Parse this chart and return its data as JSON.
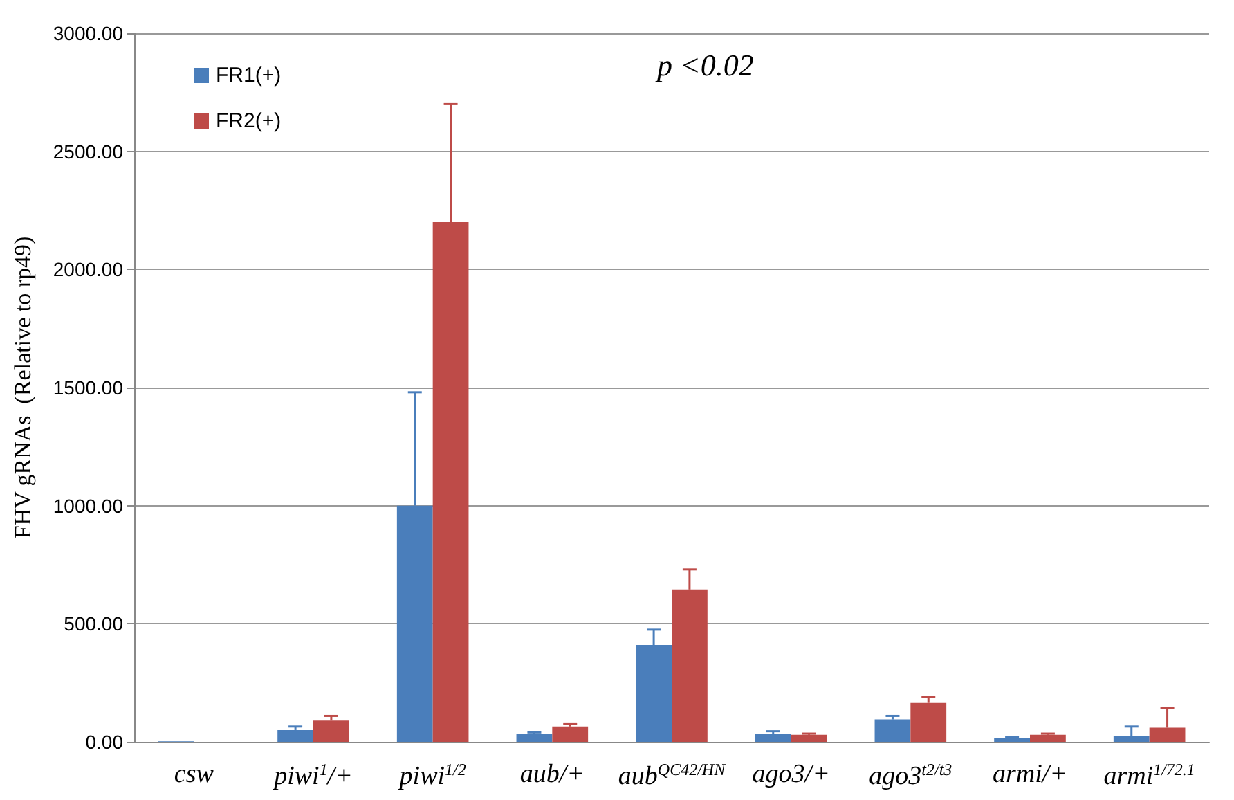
{
  "chart_data": {
    "type": "bar",
    "ylabel": "FHV gRNAs  (Relative to rp49)",
    "categories": [
      "csw",
      "piwi$^{1}$/+",
      "piwi$^{1/2}$",
      "aub/+",
      "aub$^{QC42/HN}$",
      "ago3/+",
      "ago3$^{t2/t3}$",
      "armi/+",
      "armi$^{1/72.1}$"
    ],
    "series": [
      {
        "name": "FR1(+)",
        "color": "#4a7ebb",
        "values": [
          2,
          50,
          1000,
          35,
          410,
          35,
          95,
          15,
          25
        ],
        "errors": [
          null,
          [
            50,
            65
          ],
          [
            1000,
            1480
          ],
          [
            35,
            40
          ],
          [
            410,
            475
          ],
          [
            35,
            45
          ],
          [
            95,
            110
          ],
          [
            15,
            20
          ],
          [
            25,
            65
          ]
        ]
      },
      {
        "name": "FR2(+)",
        "color": "#be4b48",
        "values": [
          null,
          90,
          2200,
          65,
          645,
          30,
          165,
          30,
          60
        ],
        "errors": [
          null,
          [
            90,
            110
          ],
          [
            2200,
            2700
          ],
          [
            65,
            75
          ],
          [
            645,
            730
          ],
          [
            30,
            35
          ],
          [
            165,
            190
          ],
          [
            30,
            35
          ],
          [
            60,
            145
          ]
        ]
      }
    ],
    "ylim": [
      0,
      3000
    ],
    "yticks": [
      {
        "value": 0,
        "label": "0.00"
      },
      {
        "value": 500,
        "label": "500.00"
      },
      {
        "value": 1000,
        "label": "1000.00"
      },
      {
        "value": 1500,
        "label": "1500.00"
      },
      {
        "value": 2000,
        "label": "2000.00"
      },
      {
        "value": 2500,
        "label": "2500.00"
      },
      {
        "value": 3000,
        "label": "3000.00"
      }
    ],
    "grid": "y",
    "legend": "top left",
    "annotations": [
      "p <0.02"
    ]
  }
}
